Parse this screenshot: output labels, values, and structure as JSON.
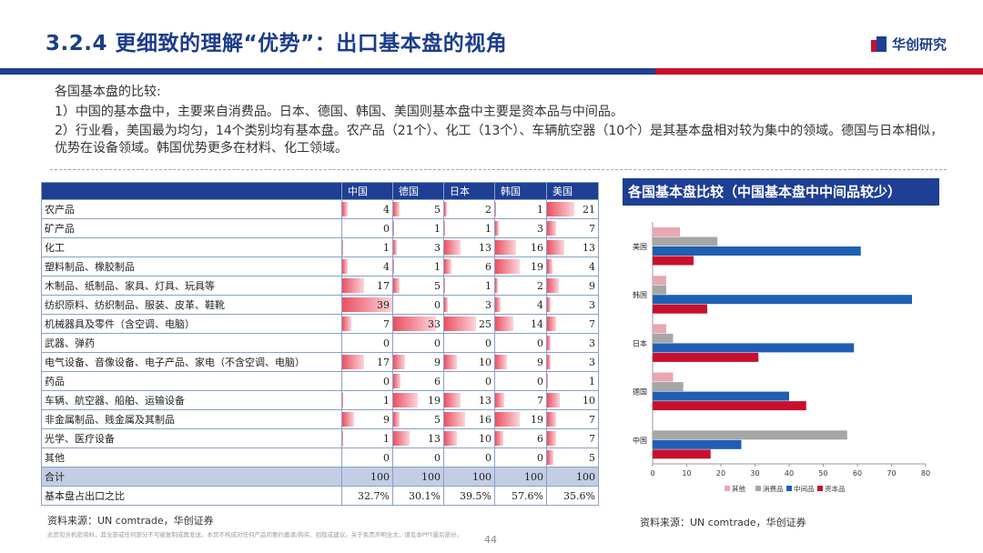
{
  "header": {
    "title": "3.2.4 更细致的理解“优势”：出口基本盘的视角",
    "logo_text": "华创研究",
    "colors": {
      "brand_blue": "#1e3f93",
      "brand_red": "#c8102e"
    }
  },
  "intro": {
    "heading": "各国基本盘的比较:",
    "point1": "1）中国的基本盘中，主要来自消费品。日本、德国、韩国、美国则基本盘中主要是资本品与中间品。",
    "point2": "2）行业看，美国最为均匀，14个类别均有基本盘。农产品（21个）、化工（13个）、车辆航空器（10个）是其基本盘相对较为集中的领域。德国与日本相似，优势在设备领域。韩国优势更多在材料、化工领域。"
  },
  "table": {
    "headers": [
      "",
      "中国",
      "德国",
      "日本",
      "韩国",
      "美国"
    ],
    "bar_max": 39,
    "rows": [
      {
        "label": "农产品",
        "values": [
          4,
          5,
          2,
          1,
          21
        ]
      },
      {
        "label": "矿产品",
        "values": [
          0,
          1,
          1,
          3,
          7
        ]
      },
      {
        "label": "化工",
        "values": [
          1,
          3,
          13,
          16,
          13
        ]
      },
      {
        "label": "塑料制品、橡胶制品",
        "values": [
          4,
          1,
          6,
          19,
          4
        ]
      },
      {
        "label": "木制品、纸制品、家具、灯具、玩具等",
        "values": [
          17,
          5,
          1,
          2,
          9
        ]
      },
      {
        "label": "纺织原料、纺织制品、服装、皮革、鞋靴",
        "values": [
          39,
          0,
          3,
          4,
          3
        ]
      },
      {
        "label": "机械器具及零件（含空调、电脑）",
        "values": [
          7,
          33,
          25,
          14,
          7
        ]
      },
      {
        "label": "武器、弹药",
        "values": [
          0,
          0,
          0,
          0,
          3
        ]
      },
      {
        "label": "电气设备、音像设备、电子产品、家电（不含空调、电脑）",
        "values": [
          17,
          9,
          10,
          9,
          3
        ]
      },
      {
        "label": "药品",
        "values": [
          0,
          6,
          0,
          0,
          1
        ]
      },
      {
        "label": "车辆、航空器、船舶、运输设备",
        "values": [
          1,
          19,
          13,
          7,
          10
        ]
      },
      {
        "label": "非金属制品、贱金属及其制品",
        "values": [
          9,
          5,
          16,
          19,
          7
        ]
      },
      {
        "label": "光学、医疗设备",
        "values": [
          1,
          13,
          10,
          6,
          7
        ]
      },
      {
        "label": "其他",
        "values": [
          0,
          0,
          0,
          0,
          5
        ]
      }
    ],
    "total": {
      "label": "合计",
      "values": [
        "100",
        "100",
        "100",
        "100",
        "100"
      ]
    },
    "share": {
      "label": "基本盘占出口之比",
      "values": [
        "32.7%",
        "30.1%",
        "39.5%",
        "57.6%",
        "35.6%"
      ]
    },
    "source": "资料来源：UN comtrade，华创证券"
  },
  "chart_title": "各国基本盘比较（中国基本盘中中间品较少）",
  "chart_data": {
    "type": "bar",
    "orientation": "horizontal",
    "title": "各国基本盘比较（中国基本盘中中间品较少）",
    "categories": [
      "美国",
      "韩国",
      "日本",
      "德国",
      "中国"
    ],
    "series": [
      {
        "name": "其他",
        "color": "#e8a7b2",
        "values": [
          8,
          4,
          4,
          6,
          0
        ]
      },
      {
        "name": "消费品",
        "color": "#a6a6a6",
        "values": [
          19,
          4,
          6,
          9,
          57
        ]
      },
      {
        "name": "中间品",
        "color": "#1e5fb4",
        "values": [
          61,
          76,
          59,
          40,
          26
        ]
      },
      {
        "name": "资本品",
        "color": "#c8102e",
        "values": [
          12,
          16,
          31,
          45,
          17
        ]
      }
    ],
    "xlim": [
      0,
      80
    ],
    "xticks": [
      0,
      10,
      20,
      30,
      40,
      50,
      60,
      70,
      80
    ],
    "legend": "bottom"
  },
  "chart_source": "资料来源：UN comtrade，华创证券",
  "footer": {
    "disclaimer": "此页包含机密资料，其全部或任何部分不可被复制或再发送。本页不构成对任何产品的要约邀请/购买、招揽或建议。关于免责声明全文，请见本PPT最后部分。",
    "page_number": "44"
  }
}
